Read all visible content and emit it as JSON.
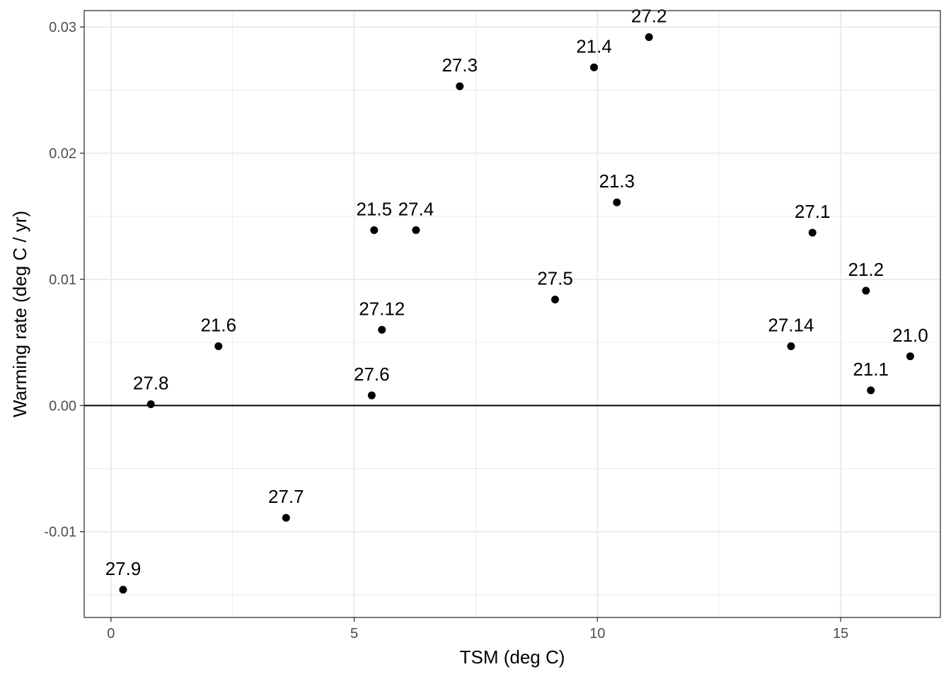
{
  "chart_data": {
    "type": "scatter",
    "title": "",
    "xlabel": "TSM (deg C)",
    "ylabel": "Warming rate (deg C / yr)",
    "xlim": [
      -0.55,
      17.05
    ],
    "ylim": [
      -0.0168,
      0.0313
    ],
    "x_ticks": [
      0,
      5,
      10,
      15
    ],
    "x_tick_labels": [
      "0",
      "5",
      "10",
      "15"
    ],
    "y_ticks": [
      -0.01,
      0.0,
      0.01,
      0.02,
      0.03
    ],
    "y_tick_labels": [
      "-0.01",
      "0.00",
      "0.01",
      "0.02",
      "0.03"
    ],
    "grid": true,
    "reference_line_y": 0,
    "points": [
      {
        "label": "27.9",
        "x": 0.25,
        "y": -0.0146
      },
      {
        "label": "27.8",
        "x": 0.82,
        "y": 0.0001
      },
      {
        "label": "21.6",
        "x": 2.21,
        "y": 0.0047
      },
      {
        "label": "27.7",
        "x": 3.6,
        "y": -0.0089
      },
      {
        "label": "27.6",
        "x": 5.36,
        "y": 0.0008
      },
      {
        "label": "21.5",
        "x": 5.41,
        "y": 0.0139
      },
      {
        "label": "27.12",
        "x": 5.57,
        "y": 0.006
      },
      {
        "label": "27.4",
        "x": 6.27,
        "y": 0.0139
      },
      {
        "label": "27.3",
        "x": 7.17,
        "y": 0.0253
      },
      {
        "label": "27.5",
        "x": 9.13,
        "y": 0.0084
      },
      {
        "label": "21.4",
        "x": 9.93,
        "y": 0.0268
      },
      {
        "label": "21.3",
        "x": 10.4,
        "y": 0.0161
      },
      {
        "label": "27.2",
        "x": 11.06,
        "y": 0.0292
      },
      {
        "label": "27.14",
        "x": 13.98,
        "y": 0.0047
      },
      {
        "label": "27.1",
        "x": 14.42,
        "y": 0.0137
      },
      {
        "label": "21.2",
        "x": 15.52,
        "y": 0.0091
      },
      {
        "label": "21.1",
        "x": 15.62,
        "y": 0.0012
      },
      {
        "label": "21.0",
        "x": 16.43,
        "y": 0.0039
      }
    ]
  }
}
